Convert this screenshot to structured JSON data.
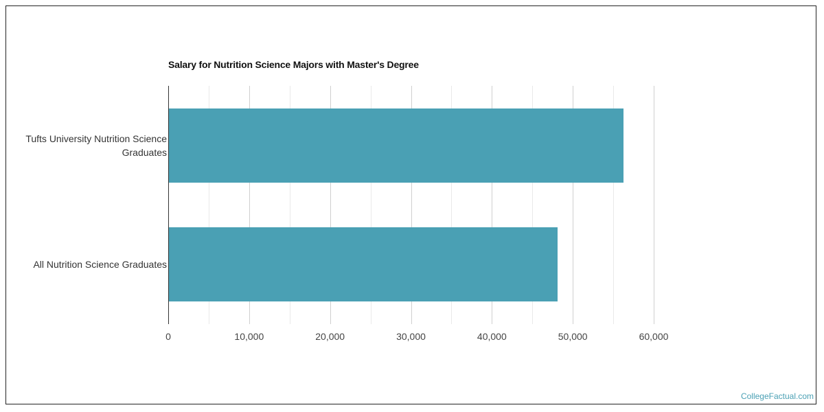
{
  "chart_data": {
    "type": "bar",
    "orientation": "horizontal",
    "title": "Salary for Nutrition Science Majors with Master's Degree",
    "categories": [
      "Tufts University Nutrition Science Graduates",
      "All Nutrition Science Graduates"
    ],
    "category_lines": [
      [
        "Tufts University Nutrition Science",
        "Graduates"
      ],
      [
        "All Nutrition Science Graduates"
      ]
    ],
    "values": [
      56300,
      48100
    ],
    "xlabel": "",
    "ylabel": "",
    "xlim": [
      0,
      60000
    ],
    "xticks": [
      0,
      10000,
      20000,
      30000,
      40000,
      50000,
      60000
    ],
    "xtick_labels": [
      "0",
      "10,000",
      "20,000",
      "30,000",
      "40,000",
      "50,000",
      "60,000"
    ],
    "grid": true,
    "minor_grid_step": 5000,
    "legend": null,
    "bar_color": "#4aa0b4"
  },
  "credit": {
    "text": "CollegeFactual.com",
    "color": "#4aa0b4"
  }
}
